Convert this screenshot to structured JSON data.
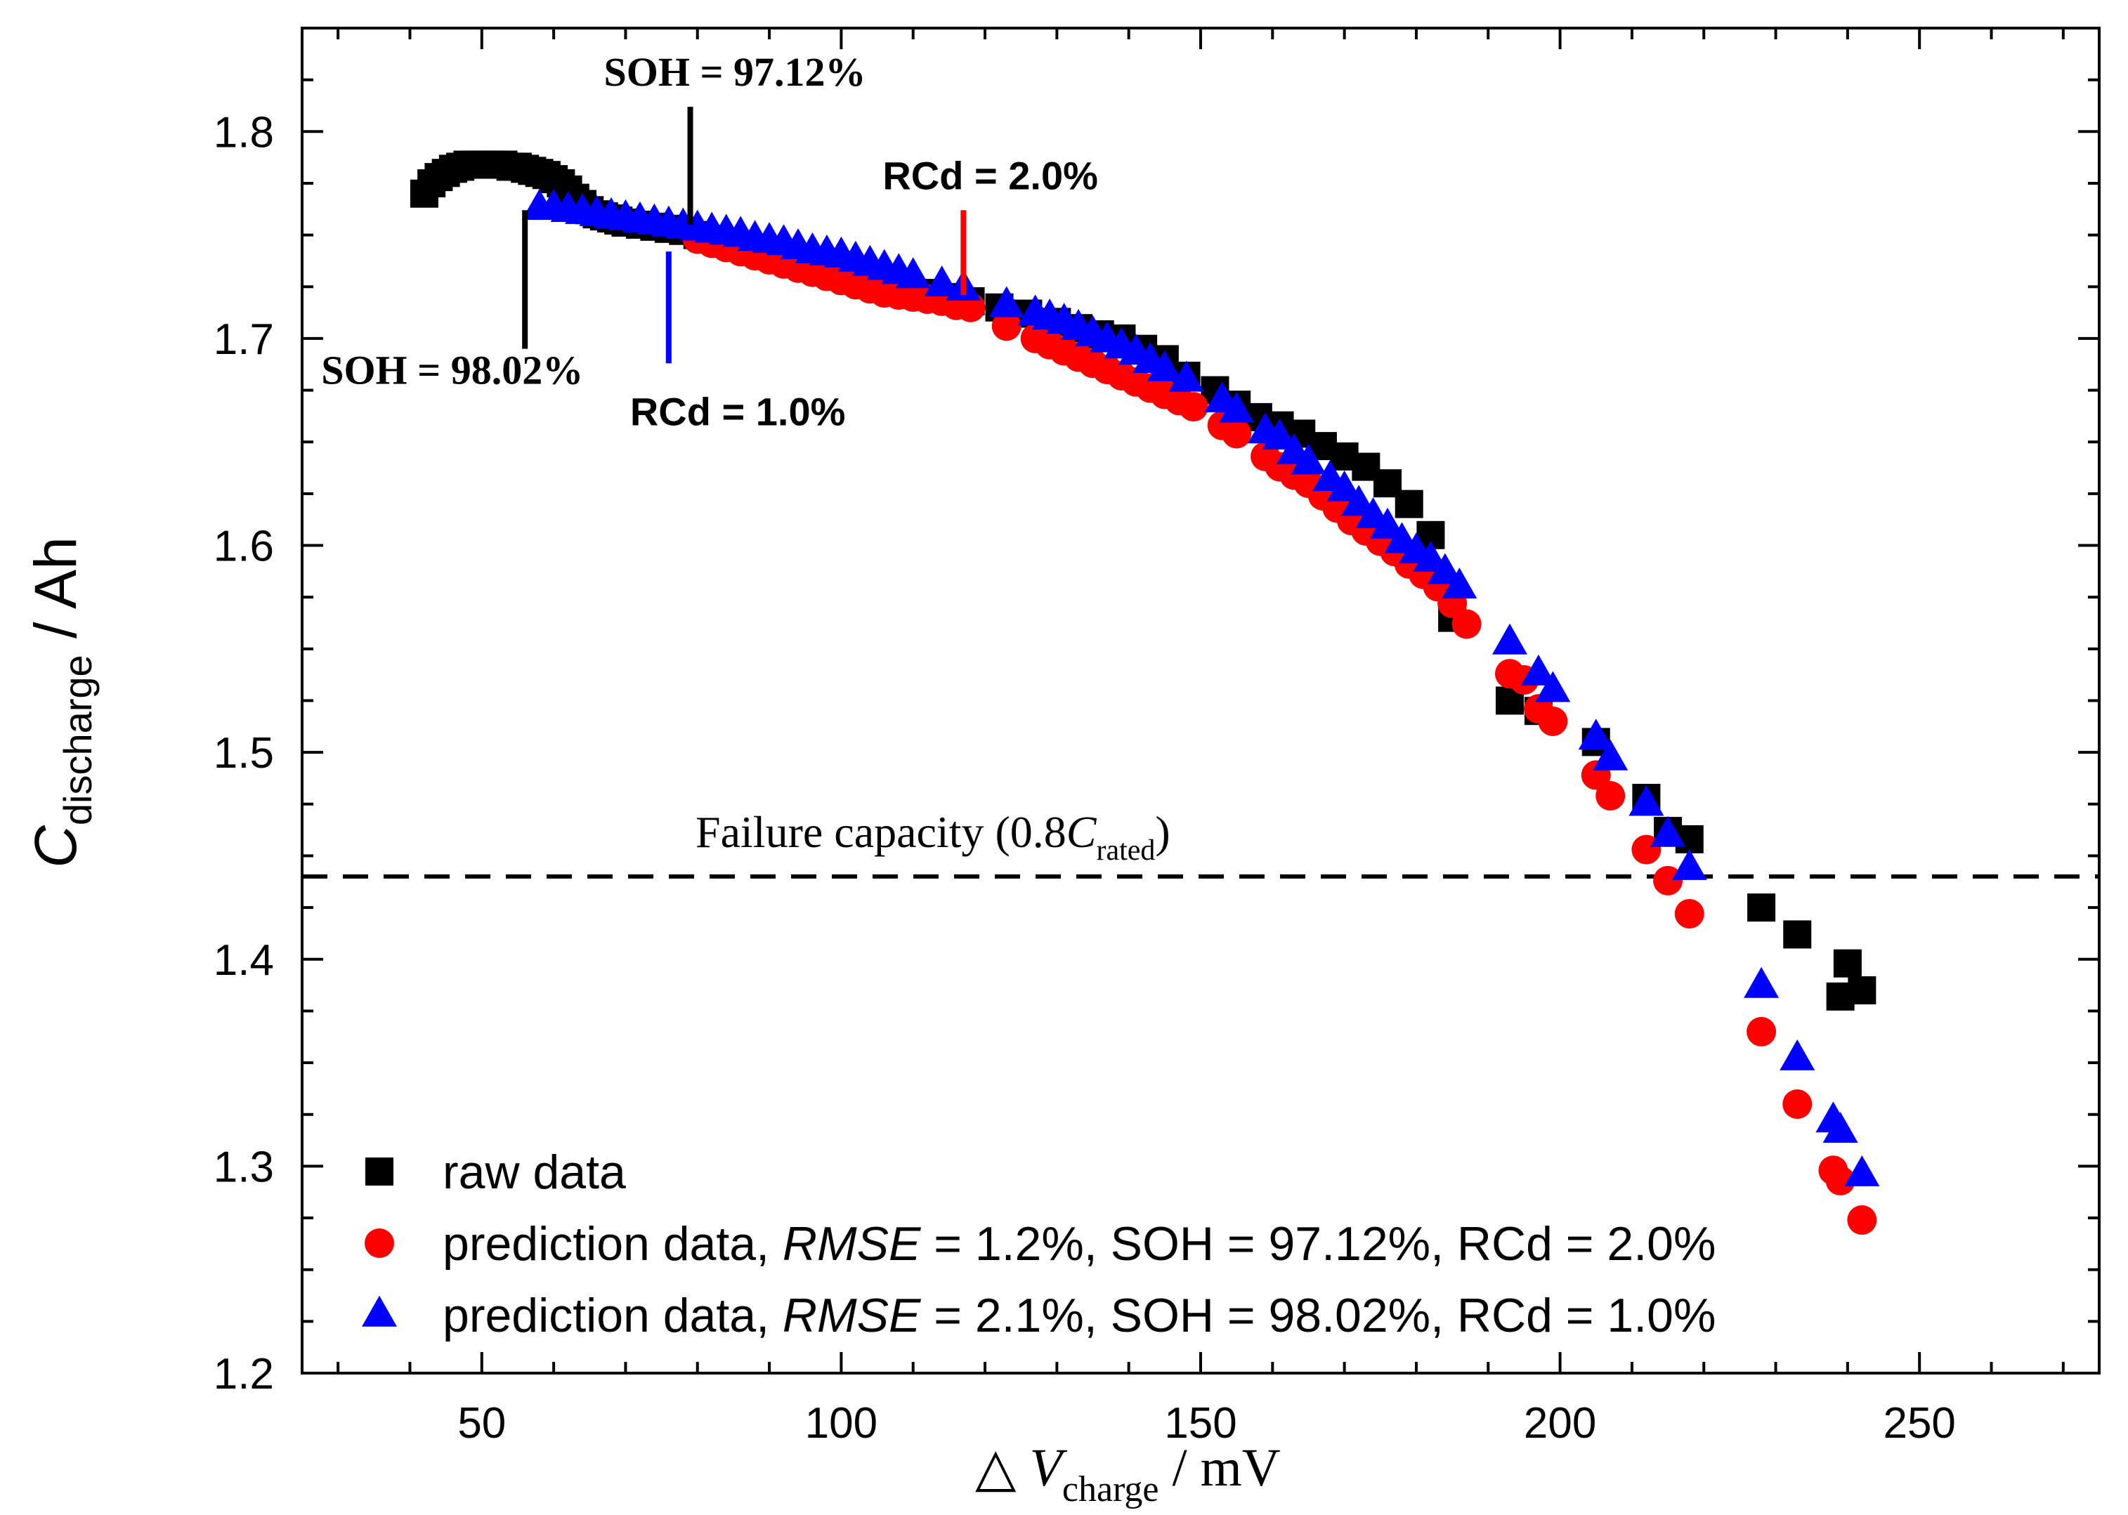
{
  "chart_data": {
    "type": "scatter",
    "xlabel": {
      "prefix": "△",
      "var": "V",
      "sub": "charge",
      "unit": "/  mV"
    },
    "ylabel": {
      "var": "C",
      "sub": "discharge",
      "unit": " / Ah"
    },
    "xlim": [
      25,
      275
    ],
    "ylim": [
      1.2,
      1.85
    ],
    "xticks": [
      50,
      100,
      150,
      200,
      250
    ],
    "xtick_labels": [
      "50",
      "100",
      "150",
      "200",
      "250"
    ],
    "yticks": [
      1.2,
      1.3,
      1.4,
      1.5,
      1.6,
      1.7,
      1.8
    ],
    "ytick_labels": [
      "1.2",
      "1.3",
      "1.4",
      "1.5",
      "1.6",
      "1.7",
      "1.8"
    ],
    "reference_line": {
      "y": 1.44,
      "style": "dashed",
      "label": "Failure capacity (0.8",
      "label_var": "C",
      "label_sub": "rated",
      "label_end": ")"
    },
    "annotations": [
      {
        "text": "SOH = 97.12%",
        "x": 79,
        "y_from": 1.755,
        "y_to": 1.812,
        "color": "#000000",
        "font": "serif"
      },
      {
        "text": "SOH = 98.02%",
        "x": 56,
        "y_from": 1.695,
        "y_to": 1.762,
        "color": "#000000",
        "font": "serif"
      },
      {
        "text": "RCd = 2.0%",
        "x": 117,
        "y_from": 1.721,
        "y_to": 1.762,
        "color": "#ff0000",
        "font": "sans"
      },
      {
        "text": "RCd = 1.0%",
        "x": 76,
        "y_from": 1.688,
        "y_to": 1.742,
        "color": "#0000ff",
        "font": "sans"
      }
    ],
    "legend": {
      "position": "bottom-left",
      "entries": [
        {
          "label": "raw data"
        },
        {
          "label_pre": "prediction data, ",
          "label_var": "RMSE",
          "label_post": " = 1.2%, SOH = 97.12%, RCd = 2.0%"
        },
        {
          "label_pre": "prediction data, ",
          "label_var": "RMSE",
          "label_post": " = 2.1%, SOH = 98.02%, RCd = 1.0%"
        }
      ]
    },
    "series": [
      {
        "name": "raw data",
        "marker": "square",
        "color": "#000000",
        "x": [
          42,
          43,
          44,
          45,
          46,
          47,
          48,
          49,
          50,
          51,
          52,
          53,
          54,
          55,
          56,
          57,
          58,
          59,
          60,
          61,
          62,
          63,
          64,
          65,
          66,
          67,
          68,
          69,
          70,
          72,
          74,
          76,
          78,
          80,
          82,
          85,
          88,
          91,
          94,
          97,
          100,
          103,
          106,
          109,
          112,
          115,
          118,
          122,
          126,
          130,
          133,
          136,
          139,
          142,
          145,
          148,
          152,
          155,
          158,
          161,
          164,
          167,
          170,
          173,
          176,
          179,
          182,
          185,
          193,
          197,
          205,
          212,
          215,
          218,
          228,
          233,
          239,
          240,
          242
        ],
        "y": [
          1.77,
          1.775,
          1.778,
          1.78,
          1.782,
          1.783,
          1.784,
          1.784,
          1.784,
          1.784,
          1.784,
          1.784,
          1.783,
          1.783,
          1.782,
          1.781,
          1.78,
          1.779,
          1.777,
          1.775,
          1.772,
          1.768,
          1.765,
          1.762,
          1.76,
          1.759,
          1.758,
          1.757,
          1.756,
          1.755,
          1.754,
          1.753,
          1.752,
          1.75,
          1.748,
          1.746,
          1.743,
          1.74,
          1.737,
          1.734,
          1.731,
          1.728,
          1.725,
          1.722,
          1.722,
          1.72,
          1.718,
          1.715,
          1.712,
          1.708,
          1.705,
          1.702,
          1.7,
          1.695,
          1.69,
          1.682,
          1.675,
          1.668,
          1.662,
          1.658,
          1.654,
          1.648,
          1.643,
          1.638,
          1.63,
          1.62,
          1.605,
          1.565,
          1.525,
          1.52,
          1.505,
          1.478,
          1.462,
          1.458,
          1.425,
          1.412,
          1.382,
          1.398,
          1.385
        ]
      },
      {
        "name": "prediction data, RMSE = 1.2%, SOH = 97.12%, RCd = 2.0%",
        "marker": "circle",
        "color": "#ff0000",
        "x": [
          80,
          82,
          84,
          86,
          88,
          90,
          92,
          94,
          96,
          98,
          100,
          102,
          104,
          106,
          108,
          110,
          112,
          114,
          116,
          118,
          123,
          127,
          129,
          131,
          133,
          135,
          137,
          139,
          141,
          143,
          145,
          147,
          149,
          153,
          155,
          159,
          161,
          163,
          165,
          167,
          169,
          171,
          173,
          175,
          177,
          179,
          181,
          183,
          185,
          187,
          193,
          195,
          197,
          199,
          205,
          207,
          212,
          215,
          218,
          228,
          233,
          238,
          239,
          242
        ],
        "y": [
          1.748,
          1.746,
          1.744,
          1.742,
          1.74,
          1.738,
          1.736,
          1.734,
          1.732,
          1.73,
          1.728,
          1.726,
          1.724,
          1.722,
          1.721,
          1.72,
          1.719,
          1.718,
          1.716,
          1.715,
          1.706,
          1.7,
          1.697,
          1.694,
          1.691,
          1.688,
          1.685,
          1.682,
          1.679,
          1.676,
          1.673,
          1.67,
          1.667,
          1.658,
          1.654,
          1.643,
          1.638,
          1.634,
          1.63,
          1.624,
          1.618,
          1.612,
          1.607,
          1.602,
          1.597,
          1.591,
          1.586,
          1.58,
          1.572,
          1.562,
          1.538,
          1.535,
          1.521,
          1.515,
          1.489,
          1.479,
          1.453,
          1.438,
          1.422,
          1.365,
          1.33,
          1.298,
          1.293,
          1.274
        ]
      },
      {
        "name": "prediction data, RMSE = 2.1%, SOH = 98.02%, RCd = 1.0%",
        "marker": "triangle",
        "color": "#0000ff",
        "x": [
          58,
          60,
          62,
          64,
          66,
          68,
          70,
          72,
          74,
          76,
          78,
          80,
          82,
          84,
          86,
          88,
          90,
          92,
          94,
          96,
          98,
          100,
          102,
          104,
          106,
          108,
          110,
          114,
          117,
          123,
          127,
          129,
          131,
          133,
          135,
          137,
          139,
          141,
          143,
          145,
          148,
          153,
          155,
          159,
          161,
          163,
          165,
          168,
          170,
          172,
          174,
          176,
          178,
          180,
          182,
          184,
          186,
          193,
          197,
          199,
          205,
          207,
          212,
          215,
          218,
          228,
          233,
          238,
          239,
          242
        ],
        "y": [
          1.763,
          1.763,
          1.762,
          1.761,
          1.76,
          1.759,
          1.758,
          1.757,
          1.756,
          1.755,
          1.754,
          1.753,
          1.752,
          1.751,
          1.75,
          1.748,
          1.747,
          1.746,
          1.744,
          1.742,
          1.741,
          1.74,
          1.738,
          1.736,
          1.734,
          1.732,
          1.73,
          1.726,
          1.724,
          1.716,
          1.712,
          1.71,
          1.708,
          1.705,
          1.702,
          1.699,
          1.696,
          1.693,
          1.689,
          1.685,
          1.68,
          1.67,
          1.665,
          1.655,
          1.652,
          1.645,
          1.64,
          1.632,
          1.627,
          1.62,
          1.614,
          1.609,
          1.602,
          1.597,
          1.593,
          1.587,
          1.58,
          1.553,
          1.538,
          1.53,
          1.507,
          1.497,
          1.475,
          1.46,
          1.444,
          1.387,
          1.352,
          1.322,
          1.317,
          1.296
        ]
      }
    ]
  }
}
